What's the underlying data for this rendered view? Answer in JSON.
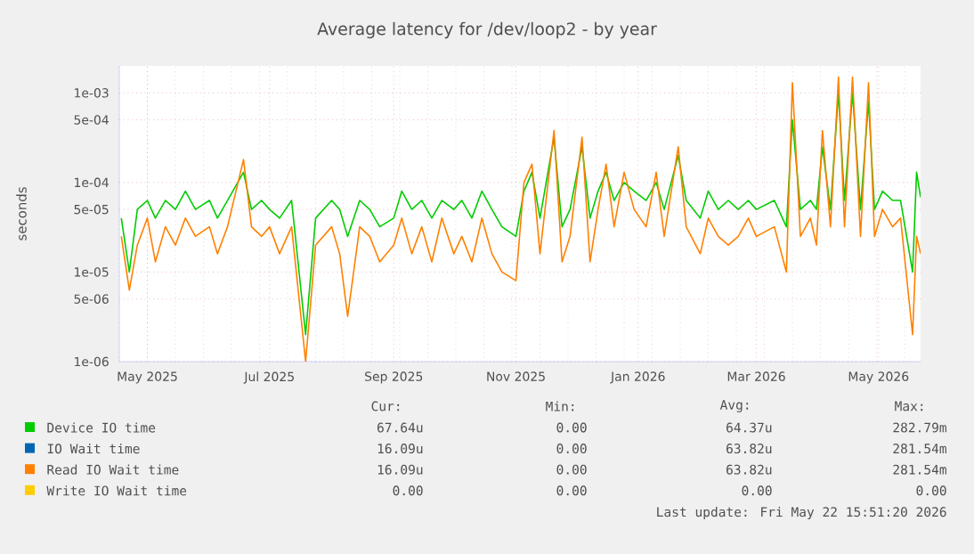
{
  "chart_data": {
    "type": "line",
    "title": "Average latency for /dev/loop2 - by year",
    "ylabel": "seconds",
    "log": "y",
    "grid": true,
    "legend": "bottom",
    "xlim": [
      "2025-04-17",
      "2026-05-22"
    ],
    "xticks": [
      {
        "value": "2025-05-01",
        "label": "May 2025"
      },
      {
        "value": "2025-07-01",
        "label": "Jul 2025"
      },
      {
        "value": "2025-09-01",
        "label": "Sep 2025"
      },
      {
        "value": "2025-11-01",
        "label": "Nov 2025"
      },
      {
        "value": "2026-01-01",
        "label": "Jan 2026"
      },
      {
        "value": "2026-03-01",
        "label": "Mar 2026"
      },
      {
        "value": "2026-05-01",
        "label": "May 2026"
      }
    ],
    "ylim": [
      1e-06,
      0.002
    ],
    "yticks": [
      {
        "value": 1e-06,
        "label": "1e-06"
      },
      {
        "value": 5e-06,
        "label": "5e-06"
      },
      {
        "value": 1e-05,
        "label": "1e-05"
      },
      {
        "value": 5e-05,
        "label": "5e-05"
      },
      {
        "value": 0.0001,
        "label": "1e-04"
      },
      {
        "value": 0.0005,
        "label": "5e-04"
      },
      {
        "value": 0.001,
        "label": "1e-03"
      }
    ],
    "x": [
      "2025-04-18",
      "2025-04-22",
      "2025-04-26",
      "2025-05-01",
      "2025-05-05",
      "2025-05-10",
      "2025-05-15",
      "2025-05-20",
      "2025-05-25",
      "2025-06-01",
      "2025-06-05",
      "2025-06-10",
      "2025-06-18",
      "2025-06-22",
      "2025-06-27",
      "2025-07-01",
      "2025-07-06",
      "2025-07-12",
      "2025-07-19",
      "2025-07-24",
      "2025-08-01",
      "2025-08-05",
      "2025-08-09",
      "2025-08-15",
      "2025-08-20",
      "2025-08-25",
      "2025-09-01",
      "2025-09-05",
      "2025-09-10",
      "2025-09-15",
      "2025-09-20",
      "2025-09-25",
      "2025-10-01",
      "2025-10-05",
      "2025-10-10",
      "2025-10-15",
      "2025-10-20",
      "2025-10-25",
      "2025-11-01",
      "2025-11-05",
      "2025-11-09",
      "2025-11-13",
      "2025-11-20",
      "2025-11-24",
      "2025-11-28",
      "2025-12-04",
      "2025-12-08",
      "2025-12-12",
      "2025-12-16",
      "2025-12-20",
      "2025-12-25",
      "2025-12-30",
      "2026-01-05",
      "2026-01-10",
      "2026-01-14",
      "2026-01-21",
      "2026-01-25",
      "2026-02-01",
      "2026-02-05",
      "2026-02-10",
      "2026-02-15",
      "2026-02-20",
      "2026-02-25",
      "2026-03-01",
      "2026-03-10",
      "2026-03-16",
      "2026-03-19",
      "2026-03-23",
      "2026-03-28",
      "2026-03-31",
      "2026-04-03",
      "2026-04-07",
      "2026-04-11",
      "2026-04-14",
      "2026-04-18",
      "2026-04-22",
      "2026-04-26",
      "2026-04-29",
      "2026-05-03",
      "2026-05-08",
      "2026-05-12",
      "2026-05-18",
      "2026-05-20",
      "2026-05-22"
    ],
    "series": [
      {
        "name": "Device IO time",
        "color": "#00cc00",
        "values": [
          4e-05,
          1e-05,
          5e-05,
          6.3e-05,
          4e-05,
          6.3e-05,
          5e-05,
          8e-05,
          5e-05,
          6.3e-05,
          4e-05,
          6.3e-05,
          0.00013,
          5e-05,
          6.3e-05,
          5e-05,
          4e-05,
          6.3e-05,
          2e-06,
          4e-05,
          6.3e-05,
          5e-05,
          2.5e-05,
          6.3e-05,
          5e-05,
          3.2e-05,
          4e-05,
          8e-05,
          5e-05,
          6.3e-05,
          4e-05,
          6.3e-05,
          5e-05,
          6.3e-05,
          4e-05,
          8e-05,
          5e-05,
          3.2e-05,
          2.5e-05,
          8e-05,
          0.00013,
          4e-05,
          0.00032,
          3.2e-05,
          5e-05,
          0.00025,
          4e-05,
          8e-05,
          0.00013,
          6.3e-05,
          0.0001,
          8e-05,
          6.3e-05,
          0.0001,
          5e-05,
          0.0002,
          6.3e-05,
          4e-05,
          8e-05,
          5e-05,
          6.3e-05,
          5e-05,
          6.3e-05,
          5e-05,
          6.3e-05,
          3.2e-05,
          0.0005,
          5e-05,
          6.3e-05,
          5e-05,
          0.00025,
          5e-05,
          0.001,
          6.3e-05,
          0.001,
          5e-05,
          0.0008,
          5e-05,
          8e-05,
          6.3e-05,
          6.3e-05,
          1e-05,
          0.00013,
          6.8e-05
        ]
      },
      {
        "name": "IO Wait time",
        "color": "#0066b3",
        "values": [
          null,
          null,
          null,
          null,
          null,
          null,
          null,
          null,
          null,
          null,
          null,
          null,
          null,
          null,
          null,
          null,
          null,
          null,
          null,
          null,
          null,
          null,
          null,
          null,
          null,
          null,
          null,
          null,
          null,
          null,
          null,
          null,
          null,
          null,
          null,
          null,
          null,
          null,
          null,
          null,
          null,
          null,
          null,
          null,
          null,
          null,
          null,
          null,
          null,
          null,
          null,
          null,
          null,
          null,
          null,
          null,
          null,
          null,
          null,
          null,
          null,
          null,
          null,
          null,
          null,
          null,
          null,
          null,
          null,
          null,
          null,
          null,
          null,
          null,
          null,
          null,
          null,
          null,
          null,
          null,
          null,
          null,
          null,
          null
        ]
      },
      {
        "name": "Read IO Wait time",
        "color": "#ff8000",
        "values": [
          2.5e-05,
          6.3e-06,
          2e-05,
          4e-05,
          1.3e-05,
          3.2e-05,
          2e-05,
          4e-05,
          2.5e-05,
          3.2e-05,
          1.6e-05,
          3.2e-05,
          0.00018,
          3.2e-05,
          2.5e-05,
          3.2e-05,
          1.6e-05,
          3.2e-05,
          1e-06,
          2e-05,
          3.2e-05,
          1.6e-05,
          3.2e-06,
          3.2e-05,
          2.5e-05,
          1.3e-05,
          2e-05,
          4e-05,
          1.6e-05,
          3.2e-05,
          1.3e-05,
          4e-05,
          1.6e-05,
          2.5e-05,
          1.3e-05,
          4e-05,
          1.6e-05,
          1e-05,
          8e-06,
          0.0001,
          0.00016,
          1.6e-05,
          0.00038,
          1.3e-05,
          2.5e-05,
          0.00032,
          1.3e-05,
          5e-05,
          0.00016,
          3.2e-05,
          0.00013,
          5e-05,
          3.2e-05,
          0.00013,
          2.5e-05,
          0.00025,
          3.2e-05,
          1.6e-05,
          4e-05,
          2.5e-05,
          2e-05,
          2.5e-05,
          4e-05,
          2.5e-05,
          3.2e-05,
          1e-05,
          0.0013,
          2.5e-05,
          4e-05,
          2e-05,
          0.00038,
          3.2e-05,
          0.0015,
          3.2e-05,
          0.0015,
          2.5e-05,
          0.0013,
          2.5e-05,
          5e-05,
          3.2e-05,
          4e-05,
          2e-06,
          2.5e-05,
          1.6e-05
        ]
      },
      {
        "name": "Write IO Wait time",
        "color": "#ffcc00",
        "values": [
          null,
          null,
          null,
          null,
          null,
          null,
          null,
          null,
          null,
          null,
          null,
          null,
          null,
          null,
          null,
          null,
          null,
          null,
          null,
          null,
          null,
          null,
          null,
          null,
          null,
          null,
          null,
          null,
          null,
          null,
          null,
          null,
          null,
          null,
          null,
          null,
          null,
          null,
          null,
          null,
          null,
          null,
          null,
          null,
          null,
          null,
          null,
          null,
          null,
          null,
          null,
          null,
          null,
          null,
          null,
          null,
          null,
          null,
          null,
          null,
          null,
          null,
          null,
          null,
          null,
          null,
          null,
          null,
          null,
          null,
          null,
          null,
          null,
          null,
          null,
          null,
          null,
          null,
          null,
          null,
          null,
          null,
          null,
          null
        ]
      }
    ],
    "annotations": [
      "Cur:",
      "Min:",
      "Avg:",
      "Max:",
      "67.64u",
      "0.00",
      "64.37u",
      "282.79m",
      "16.09u",
      "0.00",
      "63.82u",
      "281.54m",
      "16.09u",
      "0.00",
      "63.82u",
      "281.54m",
      "0.00",
      "0.00",
      "0.00",
      "0.00",
      "Last update: Fri May 22 15:51:20 2026"
    ]
  }
}
